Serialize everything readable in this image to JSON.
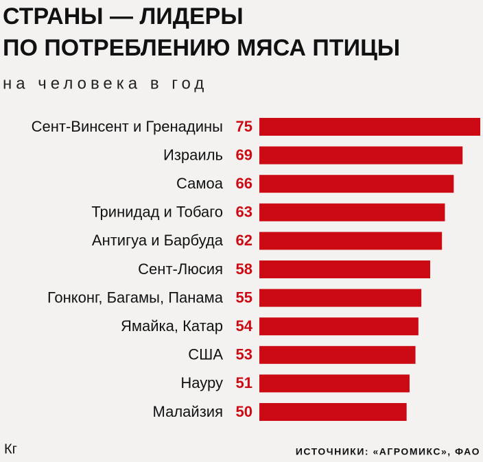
{
  "chart_data": {
    "type": "hbar",
    "title": [
      "СТРАНЫ — ЛИДЕРЫ",
      "ПО ПОТРЕБЛЕНИЮ МЯСА ПТИЦЫ"
    ],
    "subtitle": "на человека в год",
    "unit": "Кг",
    "source": "ИСТОЧНИКИ: «АГРОМИКС», ФАО",
    "categories": [
      "Сент-Винсент и Гренадины",
      "Израиль",
      "Самоа",
      "Тринидад и Тобаго",
      "Антигуа и Барбуда",
      "Сент-Люсия",
      "Гонконг, Багамы, Панама",
      "Ямайка, Катар",
      "США",
      "Науру",
      "Малайзия"
    ],
    "values": [
      75,
      69,
      66,
      63,
      62,
      58,
      55,
      54,
      53,
      51,
      50
    ],
    "color": "#cc0a14",
    "xlim": [
      0,
      75
    ]
  }
}
